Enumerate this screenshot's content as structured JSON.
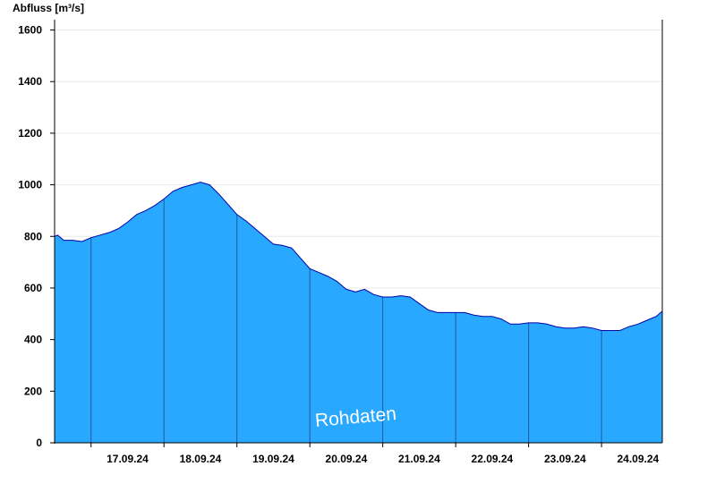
{
  "chart_data": {
    "type": "area",
    "ylabel": "Abfluss [m³/s]",
    "ylim": [
      0,
      1640
    ],
    "yticks": [
      0,
      200,
      400,
      600,
      800,
      1000,
      1200,
      1400,
      1600
    ],
    "xlim": [
      "2024-09-16T12:00",
      "2024-09-24T20:00"
    ],
    "day_labels": [
      "17.09.24",
      "18.09.24",
      "19.09.24",
      "20.09.24",
      "21.09.24",
      "22.09.24",
      "23.09.24",
      "24.09.24"
    ],
    "day_boundaries": [
      "2024-09-17T00:00",
      "2024-09-18T00:00",
      "2024-09-19T00:00",
      "2024-09-20T00:00",
      "2024-09-21T00:00",
      "2024-09-22T00:00",
      "2024-09-23T00:00",
      "2024-09-24T00:00"
    ],
    "grid": true,
    "watermark": "Rohdaten",
    "colors": {
      "fill": "#29a8ff",
      "stroke": "#0000aa",
      "grid": "#e8e8e8",
      "axis": "#000000"
    },
    "series": [
      {
        "x": [
          "2024-09-16T12:00",
          "2024-09-16T13:00",
          "2024-09-16T15:00",
          "2024-09-16T18:00",
          "2024-09-16T21:00",
          "2024-09-17T00:00",
          "2024-09-17T03:00",
          "2024-09-17T06:00",
          "2024-09-17T09:00",
          "2024-09-17T12:00",
          "2024-09-17T15:00",
          "2024-09-17T18:00",
          "2024-09-17T21:00",
          "2024-09-18T00:00",
          "2024-09-18T03:00",
          "2024-09-18T06:00",
          "2024-09-18T09:00",
          "2024-09-18T12:00",
          "2024-09-18T15:00",
          "2024-09-18T18:00",
          "2024-09-18T21:00",
          "2024-09-19T00:00",
          "2024-09-19T03:00",
          "2024-09-19T06:00",
          "2024-09-19T09:00",
          "2024-09-19T12:00",
          "2024-09-19T15:00",
          "2024-09-19T18:00",
          "2024-09-19T21:00",
          "2024-09-20T00:00",
          "2024-09-20T03:00",
          "2024-09-20T06:00",
          "2024-09-20T09:00",
          "2024-09-20T12:00",
          "2024-09-20T15:00",
          "2024-09-20T18:00",
          "2024-09-20T21:00",
          "2024-09-21T00:00",
          "2024-09-21T03:00",
          "2024-09-21T06:00",
          "2024-09-21T09:00",
          "2024-09-21T12:00",
          "2024-09-21T15:00",
          "2024-09-21T18:00",
          "2024-09-21T21:00",
          "2024-09-22T00:00",
          "2024-09-22T03:00",
          "2024-09-22T06:00",
          "2024-09-22T09:00",
          "2024-09-22T12:00",
          "2024-09-22T15:00",
          "2024-09-22T18:00",
          "2024-09-22T21:00",
          "2024-09-23T00:00",
          "2024-09-23T03:00",
          "2024-09-23T06:00",
          "2024-09-23T09:00",
          "2024-09-23T12:00",
          "2024-09-23T15:00",
          "2024-09-23T18:00",
          "2024-09-23T21:00",
          "2024-09-24T00:00",
          "2024-09-24T03:00",
          "2024-09-24T06:00",
          "2024-09-24T09:00",
          "2024-09-24T12:00",
          "2024-09-24T15:00",
          "2024-09-24T18:00",
          "2024-09-24T20:00"
        ],
        "y": [
          800,
          805,
          785,
          785,
          780,
          795,
          805,
          815,
          830,
          855,
          885,
          900,
          920,
          945,
          975,
          990,
          1000,
          1010,
          1000,
          965,
          925,
          885,
          860,
          830,
          800,
          770,
          765,
          755,
          715,
          675,
          660,
          645,
          625,
          595,
          585,
          595,
          575,
          565,
          565,
          570,
          565,
          540,
          515,
          505,
          505,
          505,
          505,
          495,
          490,
          490,
          480,
          460,
          460,
          465,
          465,
          460,
          450,
          445,
          445,
          450,
          445,
          435,
          435,
          435,
          450,
          460,
          475,
          490,
          510
        ]
      }
    ]
  }
}
